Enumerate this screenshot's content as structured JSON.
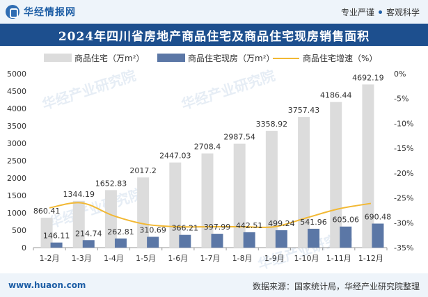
{
  "header": {
    "brand_name": "华经情报网",
    "slogan_left": "专业严谨",
    "slogan_right": "客观科学"
  },
  "footer": {
    "website": "www.huaon.com",
    "source": "数据来源：国家统计局，华经产业研究院整理"
  },
  "watermark": "华经产业研究院",
  "colors": {
    "bar_primary": "#dcdcdc",
    "bar_secondary": "#5b77a6",
    "line": "#f2b833",
    "title_bg": "#1d4f8e"
  },
  "chart_data": {
    "type": "bar",
    "title": "2024年四川省房地产商品住宅及商品住宅现房销售面积",
    "categories": [
      "1-2月",
      "1-3月",
      "1-4月",
      "1-5月",
      "1-6月",
      "1-7月",
      "1-8月",
      "1-9月",
      "1-10月",
      "1-11月",
      "1-12月"
    ],
    "series": [
      {
        "name": "商品住宅（万m²）",
        "type": "bar",
        "axis": "left",
        "color": "#dcdcdc",
        "values": [
          860.41,
          1344.19,
          1652.83,
          2017.2,
          2447.03,
          2708.4,
          2987.54,
          3358.92,
          3757.43,
          4186.44,
          4692.19
        ]
      },
      {
        "name": "商品住宅现房（万m²）",
        "type": "bar",
        "axis": "left",
        "color": "#5b77a6",
        "values": [
          146.11,
          214.74,
          262.81,
          310.69,
          366.21,
          397.99,
          442.51,
          499.24,
          541.96,
          605.06,
          690.48
        ]
      },
      {
        "name": "商品住宅增速（%）",
        "type": "line",
        "axis": "right",
        "color": "#f2b833",
        "values": [
          -27.0,
          -26.0,
          -28.6,
          -30.3,
          -30.8,
          -30.8,
          -30.8,
          -30.8,
          -29.0,
          -27.2,
          -26.1
        ]
      }
    ],
    "y_left": {
      "min": 0,
      "max": 5000,
      "ticks": [
        0,
        500,
        1000,
        1500,
        2000,
        2500,
        3000,
        3500,
        4000,
        4500,
        5000
      ]
    },
    "y_right": {
      "min": -35,
      "max": 0,
      "ticks": [
        "0%",
        "-5%",
        "-10%",
        "-15%",
        "-20%",
        "-25%",
        "-30%",
        "-35%"
      ]
    },
    "legend_position": "top",
    "grid": false
  }
}
